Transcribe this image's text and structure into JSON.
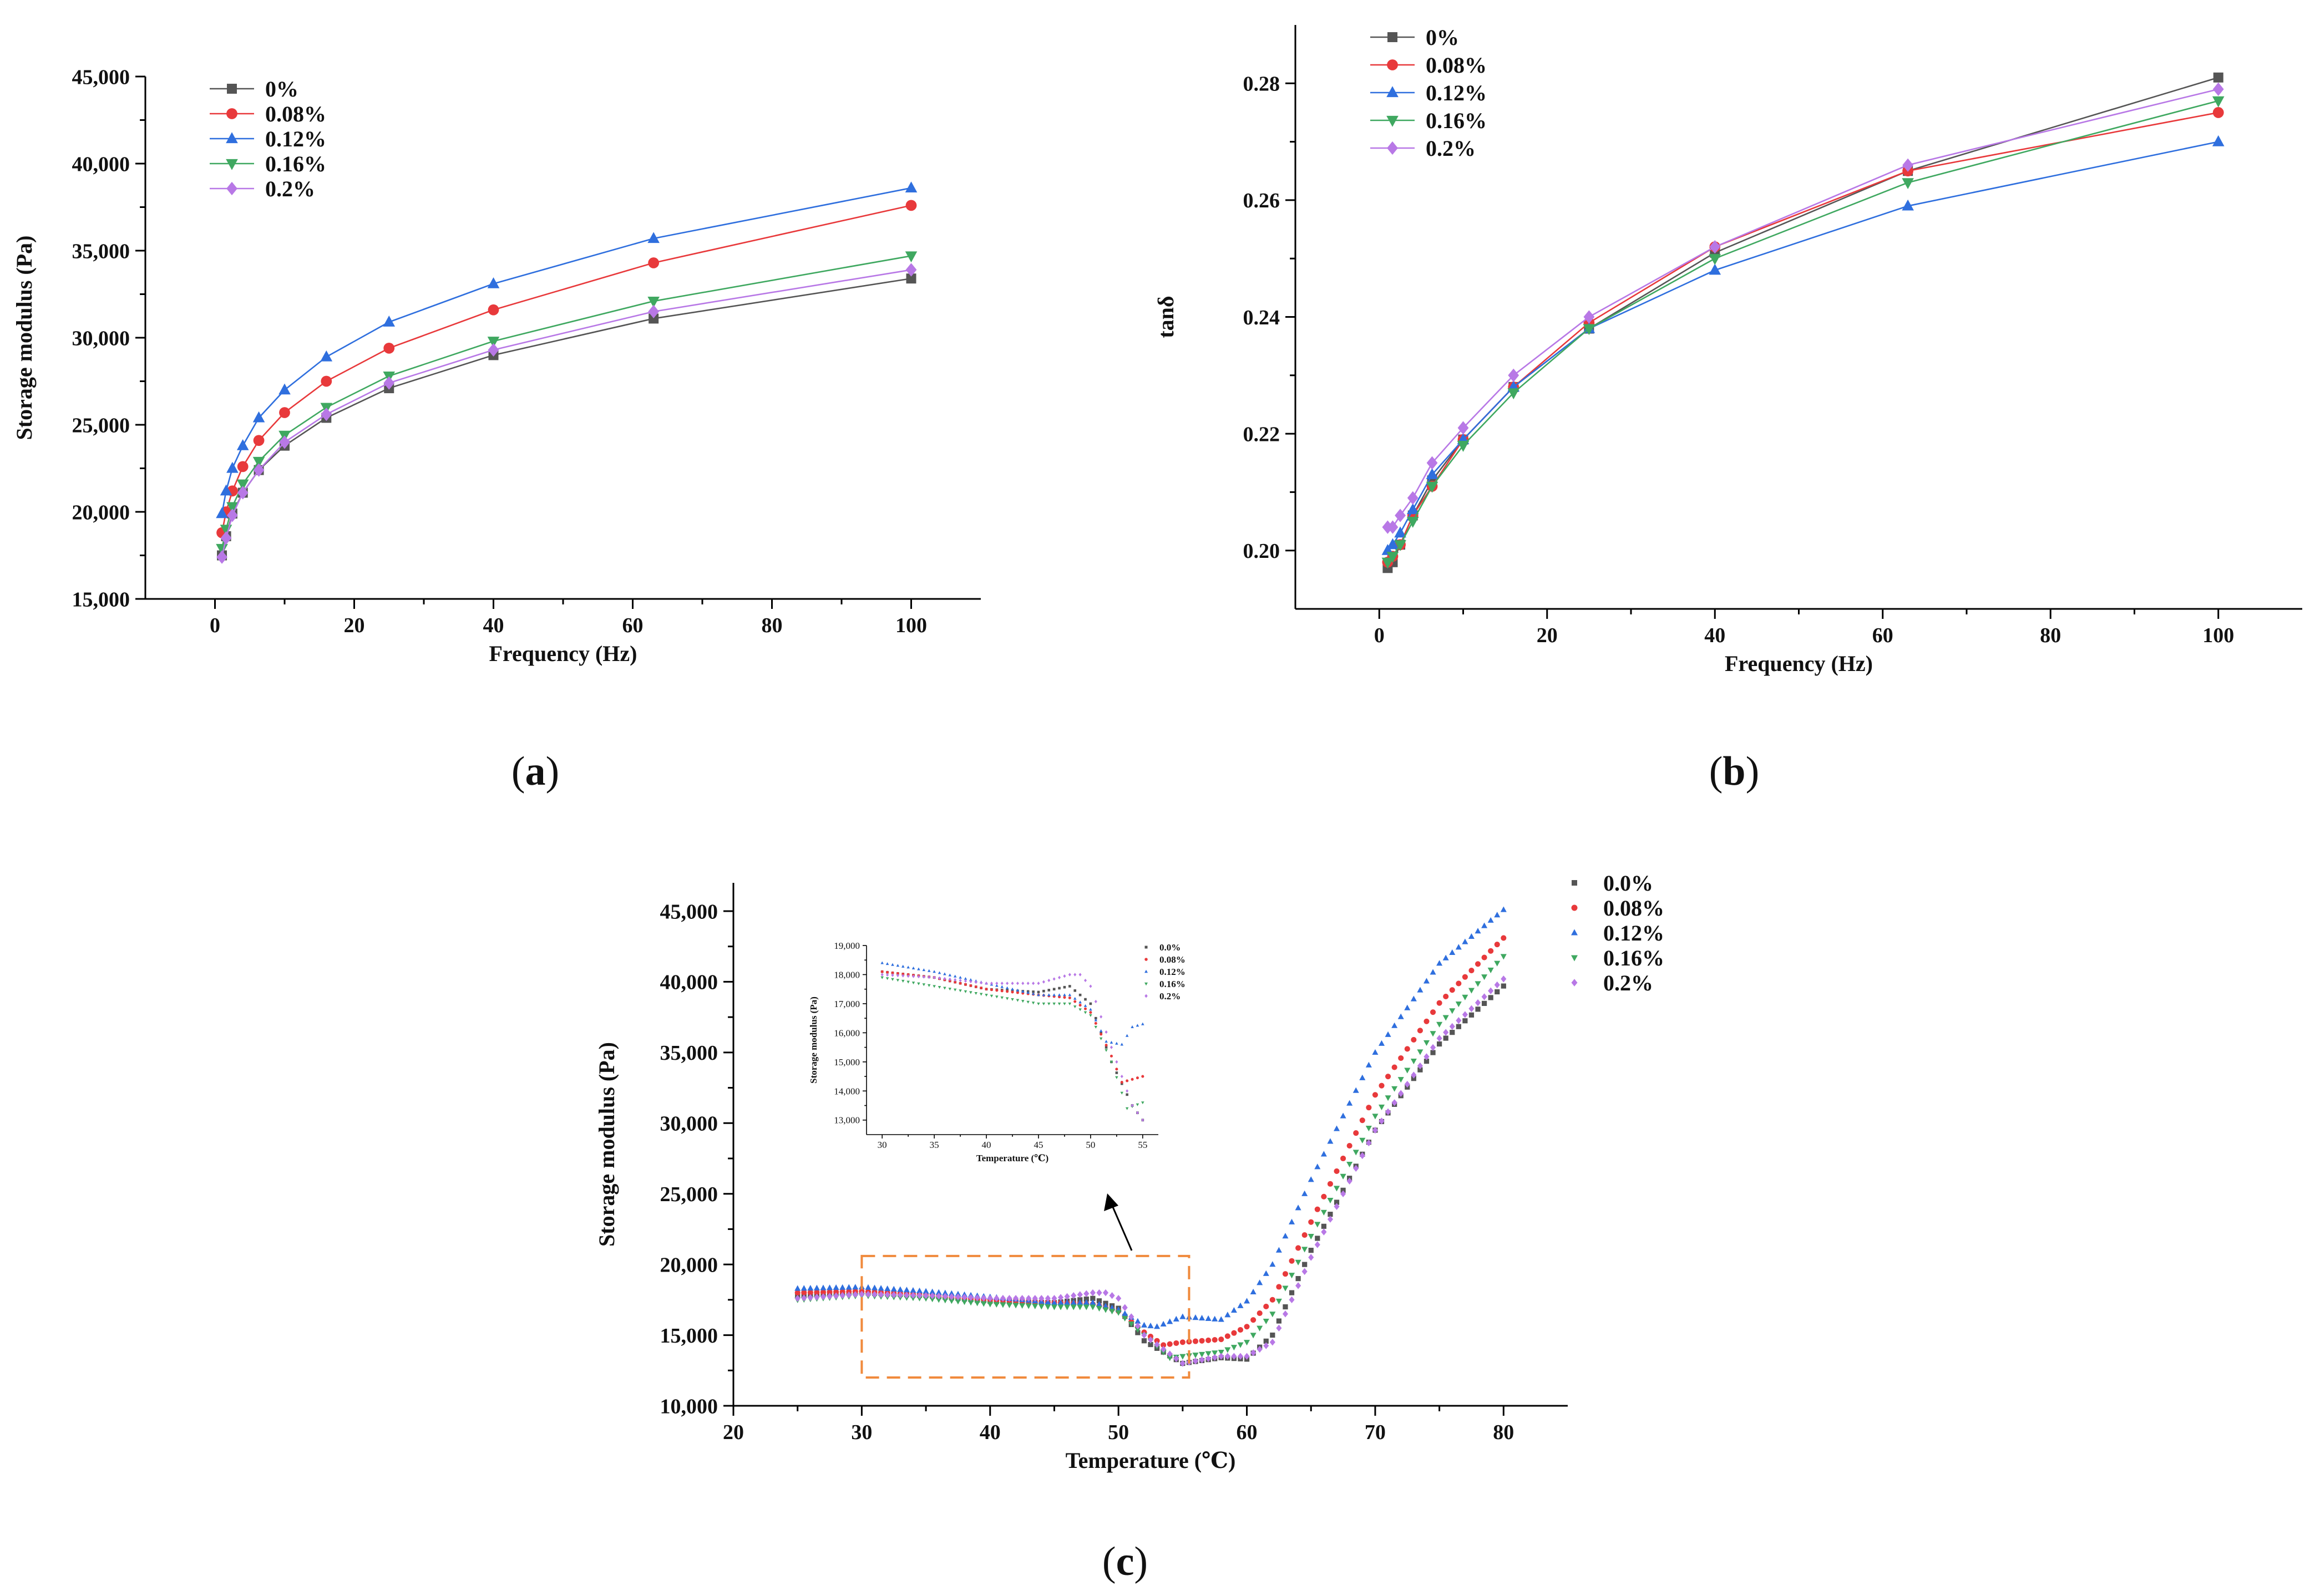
{
  "colors": {
    "s0": "#555555",
    "s008": "#e8393b",
    "s012": "#2f6fde",
    "s016": "#3fa860",
    "s02": "#b878e6",
    "box": "#f08a3c"
  },
  "chart_data": [
    {
      "id": "a",
      "caption_letter": "a",
      "type": "line",
      "title": "",
      "xlabel": "Frequency (Hz)",
      "ylabel": "Storage modulus (Pa)",
      "xlim": [
        -10,
        110
      ],
      "ylim": [
        15000,
        45000
      ],
      "xticks": [
        0,
        20,
        40,
        60,
        80,
        100
      ],
      "yticks": [
        15000,
        20000,
        25000,
        30000,
        35000,
        40000,
        45000
      ],
      "ytick_labels": [
        "15,000",
        "20,000",
        "25,000",
        "30,000",
        "35,000",
        "40,000",
        "45,000"
      ],
      "legend": "top-left",
      "x": [
        1,
        1.6,
        2.5,
        4,
        6.3,
        10,
        16,
        25,
        40,
        63,
        100
      ],
      "series": [
        {
          "name": "0%",
          "marker": "square",
          "color_key": "s0",
          "values": [
            17500,
            18600,
            19900,
            21100,
            22400,
            23800,
            25400,
            27100,
            29000,
            31100,
            33400
          ]
        },
        {
          "name": "0.08%",
          "marker": "circle",
          "color_key": "s008",
          "values": [
            18800,
            20000,
            21200,
            22600,
            24100,
            25700,
            27500,
            29400,
            31600,
            34300,
            37600
          ]
        },
        {
          "name": "0.12%",
          "marker": "triangle-up",
          "color_key": "s012",
          "values": [
            19900,
            21200,
            22500,
            23800,
            25400,
            27000,
            28900,
            30900,
            33100,
            35700,
            38600
          ]
        },
        {
          "name": "0.16%",
          "marker": "triangle-down",
          "color_key": "s016",
          "values": [
            17900,
            19000,
            20300,
            21600,
            22900,
            24400,
            26000,
            27800,
            29800,
            32100,
            34700
          ]
        },
        {
          "name": "0.2%",
          "marker": "diamond",
          "color_key": "s02",
          "values": [
            17400,
            18500,
            19800,
            21100,
            22400,
            24000,
            25600,
            27400,
            29300,
            31500,
            33900
          ]
        }
      ]
    },
    {
      "id": "b",
      "caption_letter": "b",
      "type": "line",
      "title": "",
      "xlabel": "Frequency (Hz)",
      "ylabel": "tanδ",
      "xlim": [
        -10,
        110
      ],
      "ylim": [
        0.19,
        0.29
      ],
      "xticks": [
        0,
        20,
        40,
        60,
        80,
        100
      ],
      "yticks": [
        0.2,
        0.22,
        0.24,
        0.26,
        0.28
      ],
      "ytick_labels": [
        "0.20",
        "0.22",
        "0.24",
        "0.26",
        "0.28"
      ],
      "legend": "top-left",
      "x": [
        1,
        1.6,
        2.5,
        4,
        6.3,
        10,
        16,
        25,
        40,
        63,
        100
      ],
      "series": [
        {
          "name": "0%",
          "marker": "square",
          "color_key": "s0",
          "values": [
            0.197,
            0.198,
            0.201,
            0.206,
            0.212,
            0.219,
            0.228,
            0.238,
            0.251,
            0.265,
            0.281
          ]
        },
        {
          "name": "0.08%",
          "marker": "circle",
          "color_key": "s008",
          "values": [
            0.198,
            0.199,
            0.201,
            0.206,
            0.211,
            0.219,
            0.228,
            0.239,
            0.252,
            0.265,
            0.275
          ]
        },
        {
          "name": "0.12%",
          "marker": "triangle-up",
          "color_key": "s012",
          "values": [
            0.2,
            0.201,
            0.203,
            0.207,
            0.213,
            0.219,
            0.228,
            0.238,
            0.248,
            0.259,
            0.27
          ]
        },
        {
          "name": "0.16%",
          "marker": "triangle-down",
          "color_key": "s016",
          "values": [
            0.198,
            0.199,
            0.201,
            0.205,
            0.211,
            0.218,
            0.227,
            0.238,
            0.25,
            0.263,
            0.277
          ]
        },
        {
          "name": "0.2%",
          "marker": "diamond",
          "color_key": "s02",
          "values": [
            0.204,
            0.204,
            0.206,
            0.209,
            0.215,
            0.221,
            0.23,
            0.24,
            0.252,
            0.266,
            0.279
          ]
        }
      ]
    },
    {
      "id": "c",
      "caption_letter": "c",
      "type": "scatter",
      "title": "",
      "xlabel": "Temperature (℃)",
      "ylabel": "Storage modulus (Pa)",
      "xlim": [
        20,
        85
      ],
      "ylim": [
        10000,
        47000
      ],
      "xticks": [
        20,
        30,
        40,
        50,
        60,
        70,
        80
      ],
      "yticks": [
        10000,
        15000,
        20000,
        25000,
        30000,
        35000,
        40000,
        45000
      ],
      "ytick_labels": [
        "10,000",
        "15,000",
        "20,000",
        "25,000",
        "30,000",
        "35,000",
        "40,000",
        "45,000"
      ],
      "legend": "outside-right",
      "x_start": 25,
      "x_end": 80,
      "x_step": 0.5,
      "series": [
        {
          "name": "0.0%",
          "marker": "square",
          "color_key": "s0",
          "anchors_x": [
            25,
            30,
            35,
            40,
            45,
            48,
            50,
            52,
            55,
            58,
            60,
            62,
            65,
            70,
            75,
            80
          ],
          "anchors_y": [
            17800,
            18000,
            17800,
            17400,
            17300,
            17600,
            16900,
            14600,
            13000,
            13400,
            13300,
            15000,
            21000,
            29500,
            35600,
            39700
          ]
        },
        {
          "name": "0.08%",
          "marker": "circle",
          "color_key": "s008",
          "anchors_x": [
            25,
            30,
            35,
            40,
            45,
            48,
            50,
            52,
            53.5,
            55,
            58,
            60,
            62,
            65,
            70,
            75,
            80
          ],
          "anchors_y": [
            18000,
            18100,
            17800,
            17500,
            17300,
            17200,
            16700,
            15200,
            14300,
            14500,
            14700,
            15600,
            17500,
            23000,
            32000,
            38500,
            43100
          ]
        },
        {
          "name": "0.12%",
          "marker": "triangle-up",
          "color_key": "s012",
          "anchors_x": [
            25,
            30,
            35,
            40,
            45,
            48,
            50,
            52,
            53,
            55,
            58,
            60,
            62,
            65,
            70,
            75,
            80
          ],
          "anchors_y": [
            18300,
            18400,
            18100,
            17700,
            17300,
            17300,
            16800,
            15700,
            15600,
            16300,
            16100,
            17400,
            20000,
            26000,
            35000,
            41300,
            45100
          ]
        },
        {
          "name": "0.16%",
          "marker": "triangle-down",
          "color_key": "s016",
          "anchors_x": [
            25,
            30,
            35,
            40,
            45,
            48,
            50,
            52,
            54,
            55,
            58,
            60,
            62,
            65,
            70,
            75,
            80
          ],
          "anchors_y": [
            17500,
            17800,
            17600,
            17200,
            17000,
            17000,
            16600,
            15000,
            13400,
            13500,
            13800,
            14500,
            16500,
            22000,
            30500,
            37000,
            41800
          ]
        },
        {
          "name": "0.2%",
          "marker": "diamond",
          "color_key": "s02",
          "anchors_x": [
            25,
            30,
            35,
            40,
            45,
            48,
            49,
            50,
            52,
            55,
            58,
            60,
            62,
            65,
            70,
            75,
            80
          ],
          "anchors_y": [
            17600,
            17900,
            17800,
            17600,
            17600,
            18000,
            18000,
            17600,
            15000,
            13000,
            13500,
            13500,
            14500,
            20500,
            29500,
            36000,
            40200
          ]
        }
      ],
      "highlight_box": {
        "x_range": [
          30,
          55.5
        ],
        "y_range": [
          12000,
          20600
        ]
      },
      "inset": {
        "type": "scatter",
        "xlabel": "Temperature (℃)",
        "ylabel": "Storage modulus (Pa)",
        "xlim": [
          28.5,
          56.5
        ],
        "ylim": [
          12500,
          19000
        ],
        "xticks": [
          30,
          35,
          40,
          45,
          50,
          55
        ],
        "yticks": [
          13000,
          14000,
          15000,
          16000,
          17000,
          18000,
          19000
        ],
        "ytick_labels": [
          "13,000",
          "14,000",
          "15,000",
          "16,000",
          "17,000",
          "18,000",
          "19,000"
        ],
        "x_start": 30,
        "x_end": 55,
        "x_step": 0.5,
        "legend": "top-right",
        "series": [
          {
            "name": "0.0%",
            "marker": "square",
            "color_key": "s0",
            "anchors_x": [
              30,
              35,
              40,
              45,
              48,
              50,
              52,
              54,
              55
            ],
            "anchors_y": [
              18100,
              17900,
              17500,
              17400,
              17600,
              17000,
              15000,
              13500,
              13000
            ]
          },
          {
            "name": "0.08%",
            "marker": "circle",
            "color_key": "s008",
            "anchors_x": [
              30,
              35,
              40,
              45,
              48,
              50,
              52,
              53,
              54,
              55
            ],
            "anchors_y": [
              18100,
              17900,
              17500,
              17300,
              17200,
              16700,
              15200,
              14300,
              14400,
              14500
            ]
          },
          {
            "name": "0.12%",
            "marker": "triangle-up",
            "color_key": "s012",
            "anchors_x": [
              30,
              35,
              40,
              45,
              48,
              50,
              51.5,
              53,
              54,
              55
            ],
            "anchors_y": [
              18400,
              18100,
              17700,
              17300,
              17300,
              16800,
              15700,
              15600,
              16200,
              16300
            ]
          },
          {
            "name": "0.16%",
            "marker": "triangle-down",
            "color_key": "s016",
            "anchors_x": [
              30,
              35,
              40,
              45,
              48,
              50,
              52,
              53.5,
              55
            ],
            "anchors_y": [
              17900,
              17600,
              17300,
              17000,
              17000,
              16600,
              15000,
              13400,
              13600
            ]
          },
          {
            "name": "0.2%",
            "marker": "diamond",
            "color_key": "s02",
            "anchors_x": [
              30,
              35,
              40,
              45,
              48,
              49,
              50,
              52,
              54,
              55
            ],
            "anchors_y": [
              18000,
              17900,
              17700,
              17700,
              18000,
              18000,
              17600,
              15500,
              13500,
              13000
            ]
          }
        ]
      }
    }
  ]
}
